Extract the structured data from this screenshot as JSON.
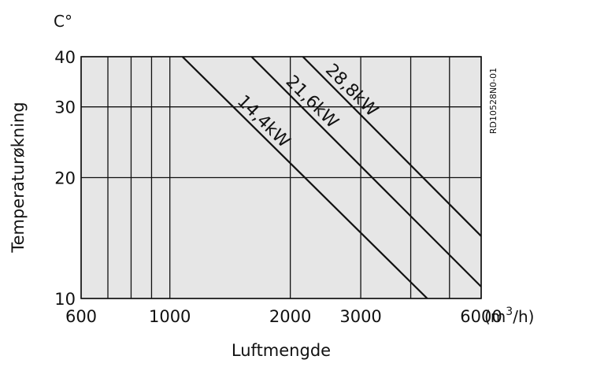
{
  "chart_data": {
    "type": "line",
    "xscale": "log",
    "yscale": "log",
    "xlim": [
      600,
      6000
    ],
    "ylim": [
      10,
      40
    ],
    "x_ticks": [
      600,
      1000,
      2000,
      3000,
      6000
    ],
    "x_tick_labels": [
      "600",
      "1000",
      "2000",
      "3000",
      "6000"
    ],
    "x_grid": [
      600,
      700,
      800,
      900,
      1000,
      2000,
      3000,
      4000,
      5000,
      6000
    ],
    "y_ticks": [
      10,
      20,
      30,
      40
    ],
    "y_tick_labels": [
      "10",
      "20",
      "30",
      "40"
    ],
    "y_unit": "C°",
    "x_unit_base": "(m",
    "x_unit_sup": "3",
    "x_unit_tail": "/h)",
    "xlabel": "Luftmengde",
    "ylabel": "Temperaturøkning",
    "grid": true,
    "plot_background": "#e6e6e6",
    "line_color": "#111111",
    "figure_code": "RD10528N0-01",
    "series": [
      {
        "name": "14,4kW",
        "points": [
          [
            1075,
            40
          ],
          [
            4400,
            10
          ]
        ]
      },
      {
        "name": "21,6kW",
        "points": [
          [
            1600,
            40
          ],
          [
            6000,
            10.7
          ]
        ]
      },
      {
        "name": "28,8kW",
        "points": [
          [
            2150,
            40
          ],
          [
            6000,
            14.3
          ]
        ]
      }
    ]
  }
}
